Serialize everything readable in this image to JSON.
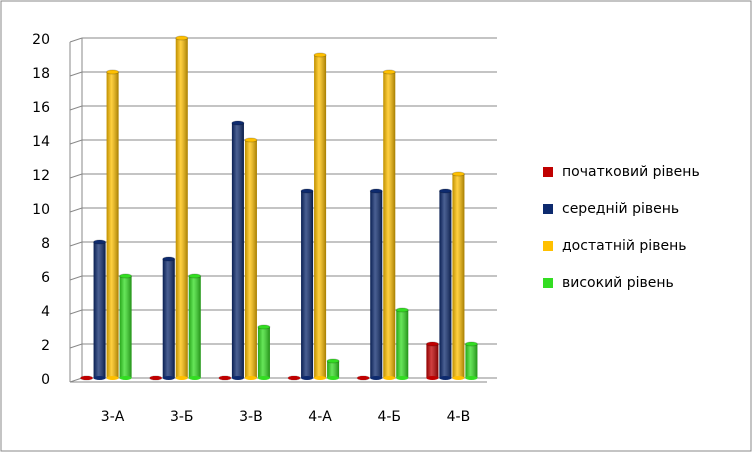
{
  "chart_data": {
    "type": "bar",
    "categories": [
      "3-А",
      "3-Б",
      "3-В",
      "4-А",
      "4-Б",
      "4-В"
    ],
    "series": [
      {
        "name": "початковий рівень",
        "color": "#c00000",
        "values": [
          0,
          0,
          0,
          0,
          0,
          2
        ]
      },
      {
        "name": "середній рівень",
        "color": "#0d2a6e",
        "values": [
          8,
          7,
          15,
          11,
          11,
          11
        ]
      },
      {
        "name": "достатній рівень",
        "color": "#ffc000",
        "values": [
          18,
          20,
          14,
          19,
          18,
          12
        ]
      },
      {
        "name": "високий рівень",
        "color": "#33dd22",
        "values": [
          6,
          6,
          3,
          1,
          4,
          2
        ]
      }
    ],
    "ylim": [
      0,
      20
    ],
    "yticks": [
      0,
      2,
      4,
      6,
      8,
      10,
      12,
      14,
      16,
      18,
      20
    ],
    "grid": true,
    "legend": "right"
  }
}
